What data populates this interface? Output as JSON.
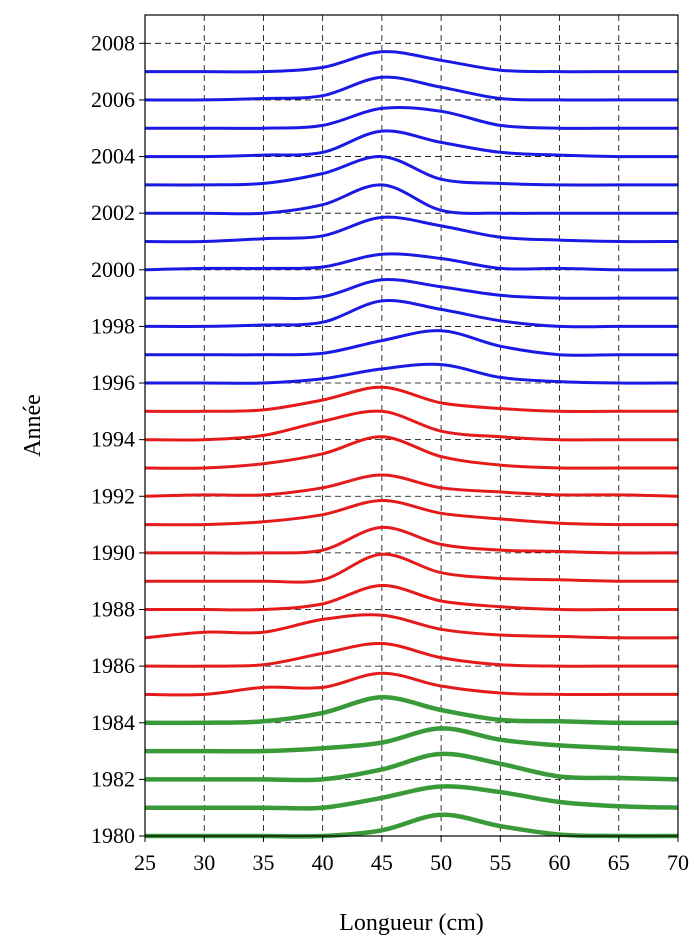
{
  "chart_data": {
    "type": "line",
    "title": "",
    "xlabel": "Longueur (cm)",
    "ylabel": "Année",
    "xlim": [
      25,
      70
    ],
    "ylim": [
      1980,
      2009
    ],
    "xticks": [
      25,
      30,
      35,
      40,
      45,
      50,
      55,
      60,
      65,
      70
    ],
    "yticks": [
      1980,
      1982,
      1984,
      1986,
      1988,
      1990,
      1992,
      1994,
      1996,
      1998,
      2000,
      2002,
      2004,
      2006,
      2008
    ],
    "grid": true,
    "legend": "none",
    "note": "Ridgeline plot: each year's length distribution drawn as a line offset at its year level.",
    "x": [
      25,
      30,
      35,
      40,
      45,
      50,
      55,
      60,
      65,
      70
    ],
    "series": [
      {
        "group": "1980-1984",
        "year": 1980,
        "color": "#3a9a3a",
        "values": [
          0,
          0,
          0,
          0,
          0.2,
          0.75,
          0.35,
          0.05,
          0,
          0
        ]
      },
      {
        "group": "1980-1984",
        "year": 1981,
        "color": "#3a9a3a",
        "values": [
          0,
          0,
          0,
          0,
          0.35,
          0.75,
          0.55,
          0.2,
          0.05,
          0
        ]
      },
      {
        "group": "1980-1984",
        "year": 1982,
        "color": "#3a9a3a",
        "values": [
          0,
          0,
          0,
          0,
          0.35,
          0.9,
          0.55,
          0.1,
          0.05,
          0
        ]
      },
      {
        "group": "1980-1984",
        "year": 1983,
        "color": "#3a9a3a",
        "values": [
          0,
          0,
          0,
          0.1,
          0.3,
          0.8,
          0.4,
          0.2,
          0.1,
          0
        ]
      },
      {
        "group": "1980-1984",
        "year": 1984,
        "color": "#3a9a3a",
        "values": [
          0,
          0,
          0.05,
          0.35,
          0.9,
          0.45,
          0.1,
          0.05,
          0,
          0
        ]
      },
      {
        "group": "1985-1995",
        "year": 1985,
        "color": "#e51a1a",
        "values": [
          0,
          0,
          0.25,
          0.25,
          0.75,
          0.3,
          0.05,
          0,
          0,
          0
        ]
      },
      {
        "group": "1985-1995",
        "year": 1986,
        "color": "#e51a1a",
        "values": [
          0,
          0,
          0.05,
          0.45,
          0.8,
          0.3,
          0.05,
          0,
          0,
          0
        ]
      },
      {
        "group": "1985-1995",
        "year": 1987,
        "color": "#e51a1a",
        "values": [
          0,
          0.2,
          0.2,
          0.65,
          0.8,
          0.3,
          0.1,
          0.05,
          0,
          0
        ]
      },
      {
        "group": "1985-1995",
        "year": 1988,
        "color": "#e51a1a",
        "values": [
          0,
          0,
          0,
          0.2,
          0.85,
          0.3,
          0.1,
          0,
          0,
          0
        ]
      },
      {
        "group": "1985-1995",
        "year": 1989,
        "color": "#e51a1a",
        "values": [
          0,
          0,
          0,
          0.05,
          0.95,
          0.3,
          0.1,
          0.05,
          0,
          0
        ]
      },
      {
        "group": "1985-1995",
        "year": 1990,
        "color": "#e51a1a",
        "values": [
          0,
          0,
          0,
          0.1,
          0.9,
          0.3,
          0.1,
          0.05,
          0,
          0
        ]
      },
      {
        "group": "1985-1995",
        "year": 1991,
        "color": "#e51a1a",
        "values": [
          0,
          0,
          0.1,
          0.35,
          0.85,
          0.4,
          0.2,
          0.05,
          0,
          0
        ]
      },
      {
        "group": "1985-1995",
        "year": 1992,
        "color": "#e51a1a",
        "values": [
          0,
          0.05,
          0.05,
          0.3,
          0.75,
          0.3,
          0.15,
          0.05,
          0.05,
          0
        ]
      },
      {
        "group": "1985-1995",
        "year": 1993,
        "color": "#e51a1a",
        "values": [
          0,
          0,
          0.15,
          0.5,
          1.1,
          0.4,
          0.1,
          0,
          0,
          0
        ]
      },
      {
        "group": "1985-1995",
        "year": 1994,
        "color": "#e51a1a",
        "values": [
          0,
          0,
          0.15,
          0.65,
          1.0,
          0.3,
          0.1,
          0,
          0,
          0
        ]
      },
      {
        "group": "1985-1995",
        "year": 1995,
        "color": "#e51a1a",
        "values": [
          0,
          0,
          0.05,
          0.4,
          0.85,
          0.3,
          0.1,
          0,
          0,
          0
        ]
      },
      {
        "group": "1996-2007",
        "year": 1996,
        "color": "#1a1ae5",
        "values": [
          0,
          0,
          0,
          0.15,
          0.5,
          0.65,
          0.2,
          0.05,
          0,
          0
        ]
      },
      {
        "group": "1996-2007",
        "year": 1997,
        "color": "#1a1ae5",
        "values": [
          0,
          0,
          0,
          0.05,
          0.5,
          0.85,
          0.3,
          0,
          0,
          0
        ]
      },
      {
        "group": "1996-2007",
        "year": 1998,
        "color": "#1a1ae5",
        "values": [
          0,
          0,
          0.05,
          0.15,
          0.9,
          0.6,
          0.2,
          0,
          0,
          0
        ]
      },
      {
        "group": "1996-2007",
        "year": 1999,
        "color": "#1a1ae5",
        "values": [
          0,
          0,
          0,
          0.05,
          0.65,
          0.4,
          0.1,
          0,
          0,
          0
        ]
      },
      {
        "group": "1996-2007",
        "year": 2000,
        "color": "#1a1ae5",
        "values": [
          0,
          0.05,
          0.05,
          0.1,
          0.55,
          0.4,
          0.05,
          0.05,
          0,
          0
        ]
      },
      {
        "group": "1996-2007",
        "year": 2001,
        "color": "#1a1ae5",
        "values": [
          0,
          0,
          0.1,
          0.2,
          0.85,
          0.55,
          0.15,
          0.05,
          0,
          0
        ]
      },
      {
        "group": "1996-2007",
        "year": 2002,
        "color": "#1a1ae5",
        "values": [
          0,
          0,
          0,
          0.3,
          1.0,
          0.1,
          0,
          0,
          0,
          0
        ]
      },
      {
        "group": "1996-2007",
        "year": 2003,
        "color": "#1a1ae5",
        "values": [
          0,
          0,
          0.05,
          0.4,
          1.0,
          0.2,
          0.05,
          0,
          0,
          0
        ]
      },
      {
        "group": "1996-2007",
        "year": 2004,
        "color": "#1a1ae5",
        "values": [
          0,
          0,
          0.05,
          0.15,
          0.9,
          0.5,
          0.15,
          0.05,
          0,
          0
        ]
      },
      {
        "group": "1996-2007",
        "year": 2005,
        "color": "#1a1ae5",
        "values": [
          0,
          0,
          0,
          0.1,
          0.7,
          0.6,
          0.1,
          0,
          0,
          0
        ]
      },
      {
        "group": "1996-2007",
        "year": 2006,
        "color": "#1a1ae5",
        "values": [
          0,
          0,
          0.05,
          0.15,
          0.8,
          0.45,
          0.05,
          0,
          0,
          0
        ]
      },
      {
        "group": "1996-2007",
        "year": 2007,
        "color": "#1a1ae5",
        "values": [
          0,
          0,
          0,
          0.15,
          0.7,
          0.4,
          0.05,
          0,
          0,
          0
        ]
      }
    ]
  }
}
